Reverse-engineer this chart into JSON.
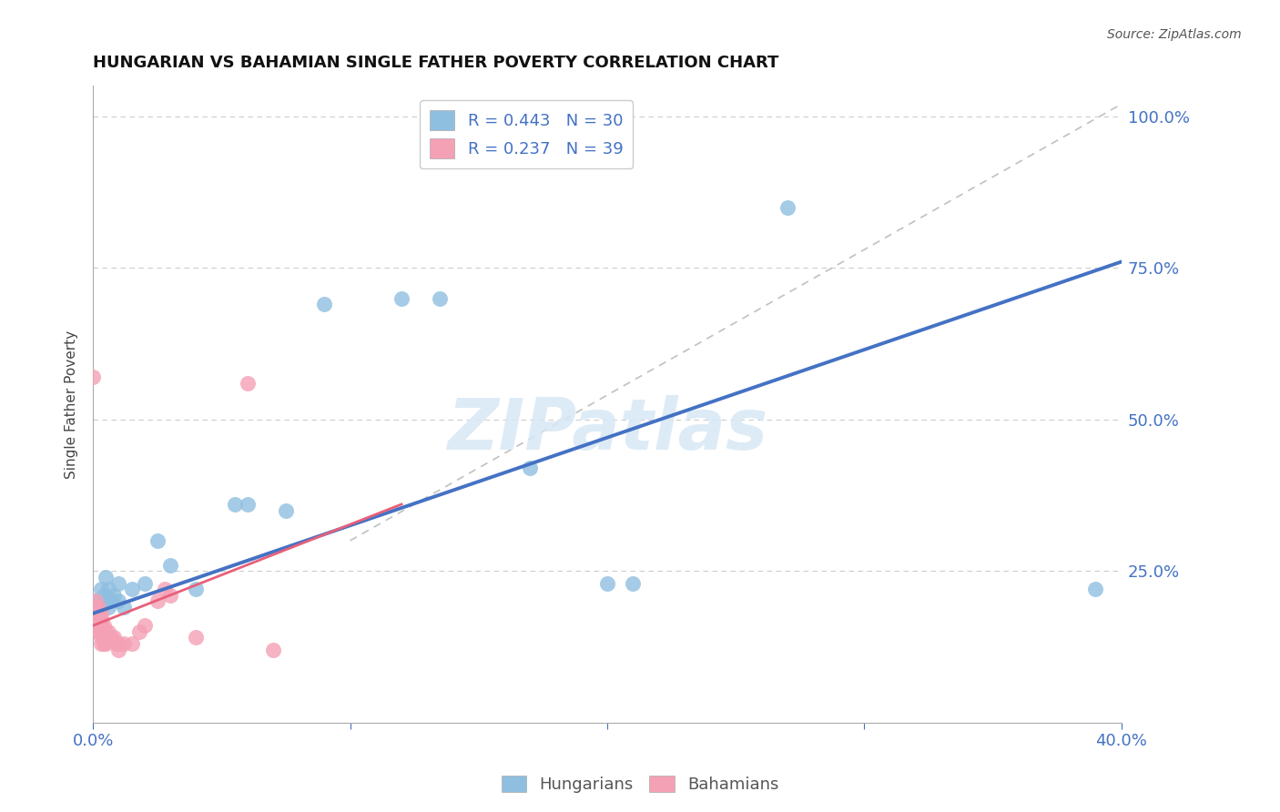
{
  "title": "HUNGARIAN VS BAHAMIAN SINGLE FATHER POVERTY CORRELATION CHART",
  "source": "Source: ZipAtlas.com",
  "xlabel": "",
  "ylabel": "Single Father Poverty",
  "xlim": [
    0.0,
    0.4
  ],
  "ylim": [
    0.0,
    1.05
  ],
  "hungarian_color": "#8FBFE0",
  "bahamian_color": "#F4A0B5",
  "hungarian_line_color": "#4472C4",
  "bahamian_line_color": "#E8607A",
  "ref_line_color": "#C0C0C0",
  "R_hungarian": 0.443,
  "N_hungarian": 30,
  "R_bahamian": 0.237,
  "N_bahamian": 39,
  "watermark": "ZIPatlas",
  "hungarian_line": [
    [
      0.0,
      0.18
    ],
    [
      0.4,
      0.76
    ]
  ],
  "bahamian_line": [
    [
      0.0,
      0.16
    ],
    [
      0.12,
      0.36
    ]
  ],
  "ref_line": [
    [
      0.1,
      0.3
    ],
    [
      0.4,
      1.02
    ]
  ],
  "hungarian_points": [
    [
      0.001,
      0.2
    ],
    [
      0.002,
      0.18
    ],
    [
      0.003,
      0.22
    ],
    [
      0.003,
      0.19
    ],
    [
      0.004,
      0.21
    ],
    [
      0.005,
      0.24
    ],
    [
      0.005,
      0.2
    ],
    [
      0.006,
      0.22
    ],
    [
      0.006,
      0.19
    ],
    [
      0.007,
      0.2
    ],
    [
      0.008,
      0.21
    ],
    [
      0.01,
      0.23
    ],
    [
      0.01,
      0.2
    ],
    [
      0.012,
      0.19
    ],
    [
      0.015,
      0.22
    ],
    [
      0.02,
      0.23
    ],
    [
      0.025,
      0.3
    ],
    [
      0.03,
      0.26
    ],
    [
      0.04,
      0.22
    ],
    [
      0.055,
      0.36
    ],
    [
      0.06,
      0.36
    ],
    [
      0.075,
      0.35
    ],
    [
      0.09,
      0.69
    ],
    [
      0.12,
      0.7
    ],
    [
      0.135,
      0.7
    ],
    [
      0.17,
      0.42
    ],
    [
      0.2,
      0.23
    ],
    [
      0.21,
      0.23
    ],
    [
      0.27,
      0.85
    ],
    [
      0.39,
      0.22
    ]
  ],
  "bahamian_points": [
    [
      0.0,
      0.57
    ],
    [
      0.001,
      0.2
    ],
    [
      0.001,
      0.19
    ],
    [
      0.001,
      0.18
    ],
    [
      0.001,
      0.17
    ],
    [
      0.002,
      0.19
    ],
    [
      0.002,
      0.18
    ],
    [
      0.002,
      0.17
    ],
    [
      0.002,
      0.16
    ],
    [
      0.002,
      0.15
    ],
    [
      0.003,
      0.18
    ],
    [
      0.003,
      0.17
    ],
    [
      0.003,
      0.16
    ],
    [
      0.003,
      0.15
    ],
    [
      0.003,
      0.14
    ],
    [
      0.003,
      0.13
    ],
    [
      0.004,
      0.16
    ],
    [
      0.004,
      0.15
    ],
    [
      0.004,
      0.14
    ],
    [
      0.004,
      0.13
    ],
    [
      0.005,
      0.15
    ],
    [
      0.005,
      0.14
    ],
    [
      0.005,
      0.13
    ],
    [
      0.006,
      0.15
    ],
    [
      0.007,
      0.14
    ],
    [
      0.008,
      0.14
    ],
    [
      0.009,
      0.13
    ],
    [
      0.01,
      0.13
    ],
    [
      0.01,
      0.12
    ],
    [
      0.012,
      0.13
    ],
    [
      0.015,
      0.13
    ],
    [
      0.018,
      0.15
    ],
    [
      0.02,
      0.16
    ],
    [
      0.025,
      0.2
    ],
    [
      0.028,
      0.22
    ],
    [
      0.03,
      0.21
    ],
    [
      0.04,
      0.14
    ],
    [
      0.06,
      0.56
    ],
    [
      0.07,
      0.12
    ]
  ]
}
